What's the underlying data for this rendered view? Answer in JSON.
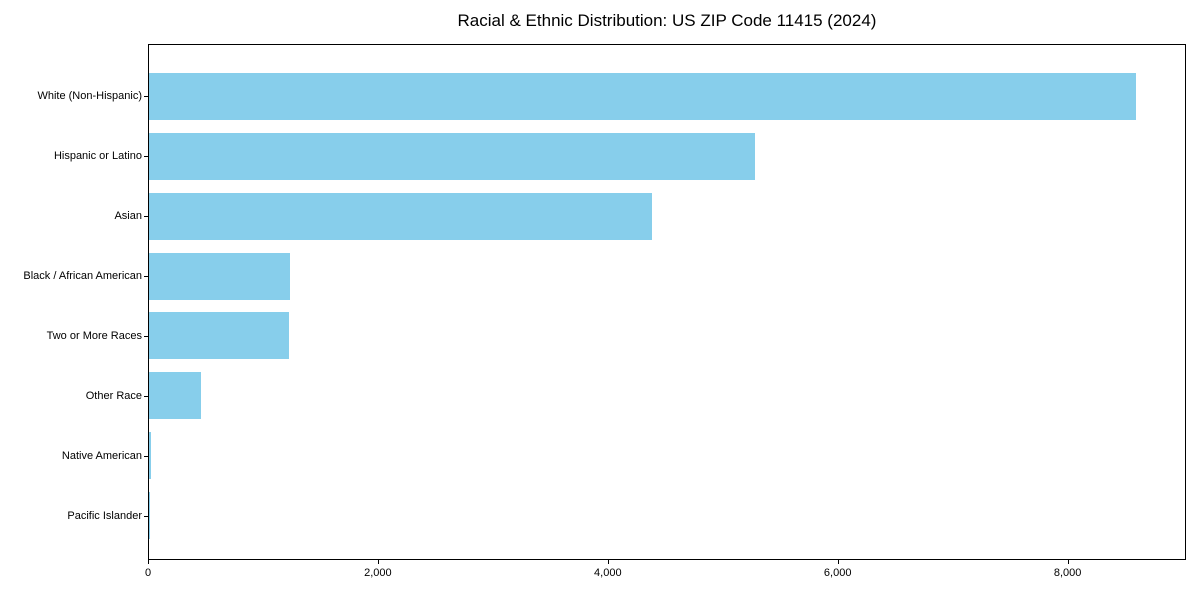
{
  "title": "Racial & Ethnic Distribution: US ZIP Code 11415 (2024)",
  "chart_data": {
    "type": "bar",
    "orientation": "horizontal",
    "title": "Racial & Ethnic Distribution: US ZIP Code 11415 (2024)",
    "categories": [
      "White (Non-Hispanic)",
      "Hispanic or Latino",
      "Asian",
      "Black / African American",
      "Two or More Races",
      "Other Race",
      "Native American",
      "Pacific Islander"
    ],
    "values": [
      8600,
      5280,
      4380,
      1230,
      1220,
      450,
      15,
      5
    ],
    "xlabel": "",
    "ylabel": "",
    "xlim": [
      0,
      9030
    ],
    "x_ticks": [
      0,
      2000,
      4000,
      6000,
      8000
    ],
    "x_tick_labels": [
      "0",
      "2,000",
      "4,000",
      "6,000",
      "8,000"
    ],
    "bar_color": "#87CEEB",
    "text_color": "#000000",
    "grid": false,
    "legend": false
  }
}
